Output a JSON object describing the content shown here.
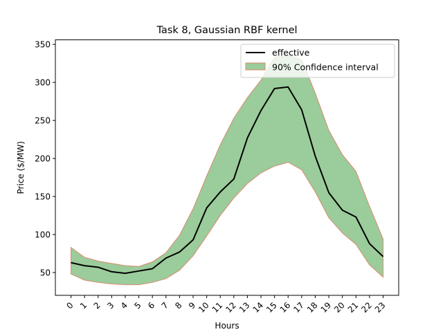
{
  "chart_data": {
    "type": "line",
    "title": "Task 8, Gaussian RBF kernel",
    "xlabel": "Hours",
    "ylabel": "Price ($/MW)",
    "x": [
      0,
      1,
      2,
      3,
      4,
      5,
      6,
      7,
      8,
      9,
      10,
      11,
      12,
      13,
      14,
      15,
      16,
      17,
      18,
      19,
      20,
      21,
      22,
      23
    ],
    "x_tick_labels": [
      "0",
      "1",
      "2",
      "3",
      "4",
      "5",
      "6",
      "7",
      "8",
      "9",
      "10",
      "11",
      "12",
      "13",
      "14",
      "15",
      "16",
      "17",
      "18",
      "19",
      "20",
      "21",
      "22",
      "23"
    ],
    "y_ticks": [
      50,
      100,
      150,
      200,
      250,
      300,
      350
    ],
    "xlim": [
      -1.15,
      24.15
    ],
    "ylim": [
      20,
      356
    ],
    "grid": false,
    "legend_position": "upper right",
    "series": [
      {
        "name": "effective",
        "kind": "line",
        "color": "#000000",
        "values": [
          63,
          59,
          57,
          51,
          49,
          52,
          55,
          69,
          77,
          93,
          135,
          156,
          173,
          227,
          263,
          292,
          294,
          264,
          203,
          155,
          132,
          123,
          88,
          71
        ]
      }
    ],
    "bands": [
      {
        "name": "90% Confidence interval",
        "fill_color": "#9bcc9b",
        "edge_color": "#d98a6e",
        "upper": [
          83,
          70,
          65,
          62,
          59,
          58,
          64,
          76,
          99,
          134,
          177,
          218,
          253,
          280,
          303,
          333,
          336,
          330,
          286,
          237,
          205,
          183,
          137,
          94
        ],
        "lower": [
          48,
          40,
          37,
          35,
          34,
          34,
          37,
          42,
          53,
          72,
          98,
          125,
          148,
          167,
          181,
          190,
          195,
          185,
          156,
          122,
          102,
          87,
          60,
          44
        ]
      }
    ]
  }
}
